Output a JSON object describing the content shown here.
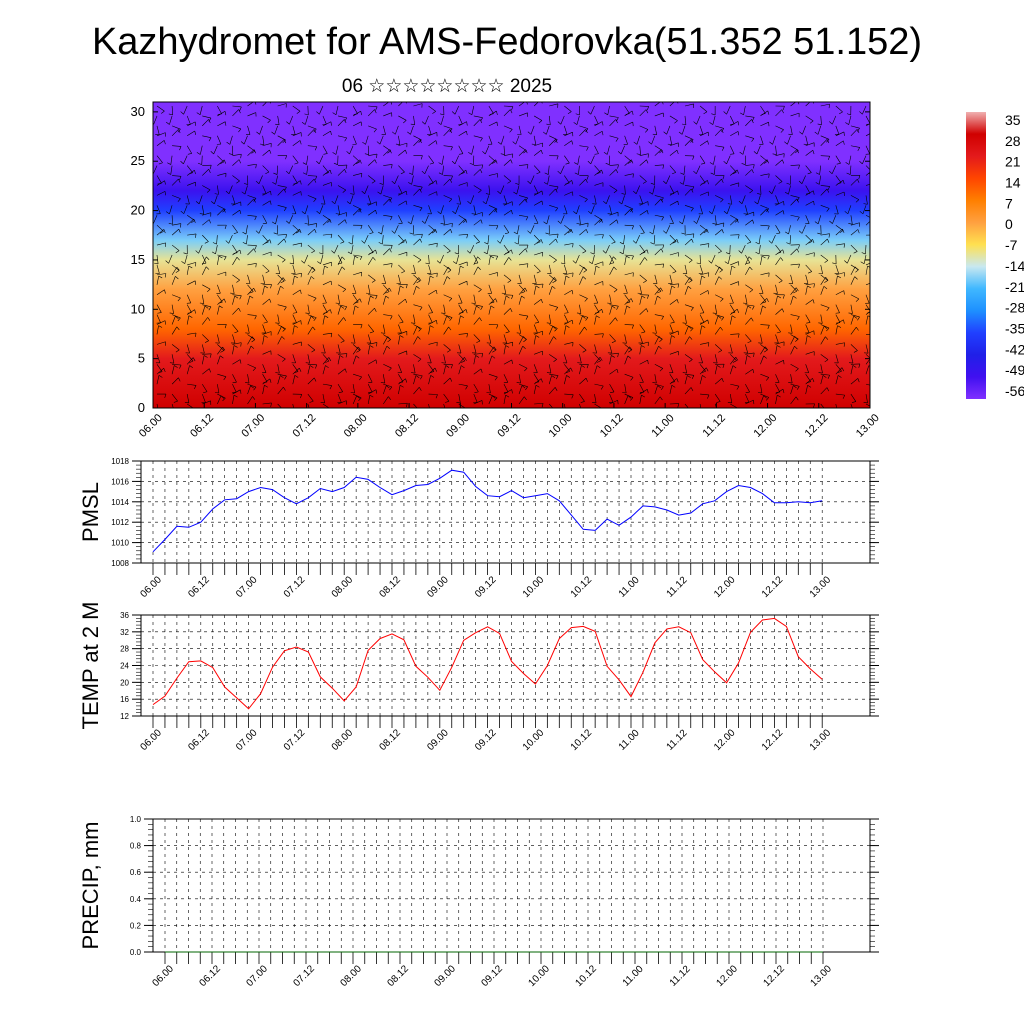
{
  "figure": {
    "title": "Kazhydromet for AMS-Fedorovka(51.352 51.152)",
    "subtitle": "06 ☆☆☆☆☆☆☆☆ 2025"
  },
  "chart_data": [
    {
      "id": "upper-air",
      "type": "heatmap",
      "title": "",
      "xlabel": "",
      "ylabel": "",
      "x_tick_labels": [
        "06.00",
        "06.12",
        "07.00",
        "07.12",
        "08.00",
        "08.12",
        "09.00",
        "09.12",
        "10.00",
        "10.12",
        "11.00",
        "11.12",
        "12.00",
        "12.12",
        "13.00"
      ],
      "y_ticks": [
        0,
        5,
        10,
        15,
        20,
        25,
        30
      ],
      "ylim": [
        0,
        31
      ],
      "colorbar": {
        "labels": [
          "35",
          "28",
          "21",
          "14",
          "7",
          "0",
          "-7",
          "-14",
          "-21",
          "-28",
          "-35",
          "-42",
          "-49",
          "-56"
        ],
        "colors": [
          "#f0b0b0",
          "#d00000",
          "#e31a1c",
          "#ff4500",
          "#ff7f00",
          "#ffa040",
          "#ffe050",
          "#c8e8f0",
          "#40b8ff",
          "#1e90ff",
          "#2040ff",
          "#2020e8",
          "#4010f0",
          "#8030ff"
        ]
      },
      "temperature_profile": [
        {
          "level": 0,
          "value": 28
        },
        {
          "level": 5,
          "value": 21
        },
        {
          "level": 8,
          "value": 10
        },
        {
          "level": 12,
          "value": 0
        },
        {
          "level": 15,
          "value": -10
        },
        {
          "level": 17,
          "value": -18
        },
        {
          "level": 20,
          "value": -35
        },
        {
          "level": 22,
          "value": -48
        },
        {
          "level": 25,
          "value": -56
        },
        {
          "level": 31,
          "value": -58
        }
      ],
      "overlay": "wind barbs"
    },
    {
      "id": "pmsl",
      "type": "line",
      "ylabel": "PMSL",
      "ylim": [
        1008,
        1018
      ],
      "y_ticks": [
        1008,
        1010,
        1012,
        1014,
        1016,
        1018
      ],
      "x_tick_labels": [
        "06.00",
        "06.12",
        "07.00",
        "07.12",
        "08.00",
        "08.12",
        "09.00",
        "09.12",
        "10.00",
        "10.12",
        "11.00",
        "11.12",
        "12.00",
        "12.12",
        "13.00"
      ],
      "xlim": [
        0,
        168
      ],
      "grid": true,
      "series": [
        {
          "color": "#0000ff",
          "x": [
            0,
            3,
            6,
            9,
            12,
            15,
            18,
            21,
            24,
            27,
            30,
            33,
            36,
            39,
            42,
            45,
            48,
            51,
            54,
            57,
            60,
            63,
            66,
            69,
            72,
            75,
            78,
            81,
            84,
            87,
            90,
            93,
            96,
            99,
            102,
            105,
            108,
            111,
            114,
            117,
            120,
            123,
            126,
            129,
            132,
            135,
            138,
            141,
            144,
            147,
            150,
            153,
            156,
            159,
            162,
            165,
            168
          ],
          "values": [
            1009.1,
            1010.3,
            1011.6,
            1011.5,
            1012.0,
            1013.3,
            1014.2,
            1014.3,
            1015.0,
            1015.4,
            1015.2,
            1014.4,
            1013.8,
            1014.4,
            1015.3,
            1015.0,
            1015.4,
            1016.4,
            1016.2,
            1015.4,
            1014.7,
            1015.1,
            1015.6,
            1015.7,
            1016.3,
            1017.1,
            1016.9,
            1015.5,
            1014.6,
            1014.5,
            1015.1,
            1014.4,
            1014.6,
            1014.8,
            1014.1,
            1012.7,
            1011.3,
            1011.2,
            1012.3,
            1011.7,
            1012.5,
            1013.6,
            1013.5,
            1013.2,
            1012.7,
            1012.9,
            1013.8,
            1014.1,
            1015.0,
            1015.6,
            1015.4,
            1014.8,
            1013.9,
            1013.9,
            1014.0,
            1013.9,
            1014.1
          ]
        }
      ]
    },
    {
      "id": "temp",
      "type": "line",
      "ylabel": "TEMP at 2 M",
      "ylim": [
        12,
        36
      ],
      "y_ticks": [
        12,
        16,
        20,
        24,
        28,
        32,
        36
      ],
      "x_tick_labels": [
        "06.00",
        "06.12",
        "07.00",
        "07.12",
        "08.00",
        "08.12",
        "09.00",
        "09.12",
        "10.00",
        "10.12",
        "11.00",
        "11.12",
        "12.00",
        "12.12",
        "13.00"
      ],
      "xlim": [
        0,
        168
      ],
      "grid": true,
      "series": [
        {
          "color": "#ff0000",
          "x": [
            0,
            3,
            6,
            9,
            12,
            15,
            18,
            21,
            24,
            27,
            30,
            33,
            36,
            39,
            42,
            45,
            48,
            51,
            54,
            57,
            60,
            63,
            66,
            69,
            72,
            75,
            78,
            81,
            84,
            87,
            90,
            93,
            96,
            99,
            102,
            105,
            108,
            111,
            114,
            117,
            120,
            123,
            126,
            129,
            132,
            135,
            138,
            141,
            144,
            147,
            150,
            153,
            156,
            159,
            162,
            165,
            168
          ],
          "values": [
            14.7,
            16.7,
            21.0,
            24.9,
            25.1,
            23.5,
            18.9,
            16.3,
            13.7,
            17.3,
            23.6,
            27.5,
            28.4,
            27.2,
            21.3,
            18.6,
            15.6,
            18.9,
            27.6,
            30.4,
            31.5,
            30.1,
            23.8,
            21.2,
            18.1,
            23.6,
            30.0,
            31.8,
            33.2,
            31.6,
            25.0,
            22.1,
            19.6,
            24.0,
            30.4,
            33.0,
            33.3,
            32.1,
            23.8,
            20.6,
            16.6,
            22.4,
            29.4,
            32.7,
            33.2,
            31.8,
            25.4,
            22.5,
            19.9,
            24.6,
            31.9,
            34.8,
            35.2,
            33.3,
            26.1,
            23.2,
            20.7
          ]
        }
      ]
    },
    {
      "id": "precip",
      "type": "line",
      "ylabel": "PRECIP, mm",
      "ylim": [
        0,
        1
      ],
      "y_ticks": [
        0.0,
        0.2,
        0.4,
        0.6,
        0.8,
        1.0
      ],
      "y_tick_labels": [
        "0.0",
        "0.2",
        "0.4",
        "0.6",
        "0.8",
        "1.0"
      ],
      "x_tick_labels": [
        "06.00",
        "06.12",
        "07.00",
        "07.12",
        "08.00",
        "08.12",
        "09.00",
        "09.12",
        "10.00",
        "10.12",
        "11.00",
        "11.12",
        "12.00",
        "12.12",
        "13.00"
      ],
      "xlim": [
        0,
        168
      ],
      "grid": true,
      "series": [
        {
          "color": "#006400",
          "x": [
            0,
            168
          ],
          "values": [
            0,
            0
          ]
        }
      ]
    }
  ]
}
